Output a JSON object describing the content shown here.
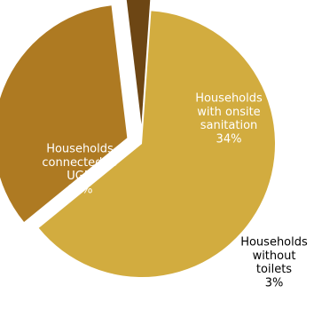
{
  "chart_data": {
    "type": "pie",
    "slices": [
      {
        "label_lines": [
          "Households",
          "connected to",
          "UGD"
        ],
        "percent_label": "63%",
        "value": 63,
        "color": "#D2AC3F"
      },
      {
        "label_lines": [
          "Households",
          "with onsite",
          "sanitation"
        ],
        "percent_label": "34%",
        "value": 34,
        "color": "#AE7A22"
      },
      {
        "label_lines": [
          "Households",
          "without",
          "toilets"
        ],
        "percent_label": "3%",
        "value": 3,
        "color": "#6D4614"
      }
    ],
    "start_angle_deg": 4,
    "direction": "clockwise",
    "exploded": true,
    "label_colors": [
      "#ffffff",
      "#ffffff",
      "#000000"
    ]
  }
}
